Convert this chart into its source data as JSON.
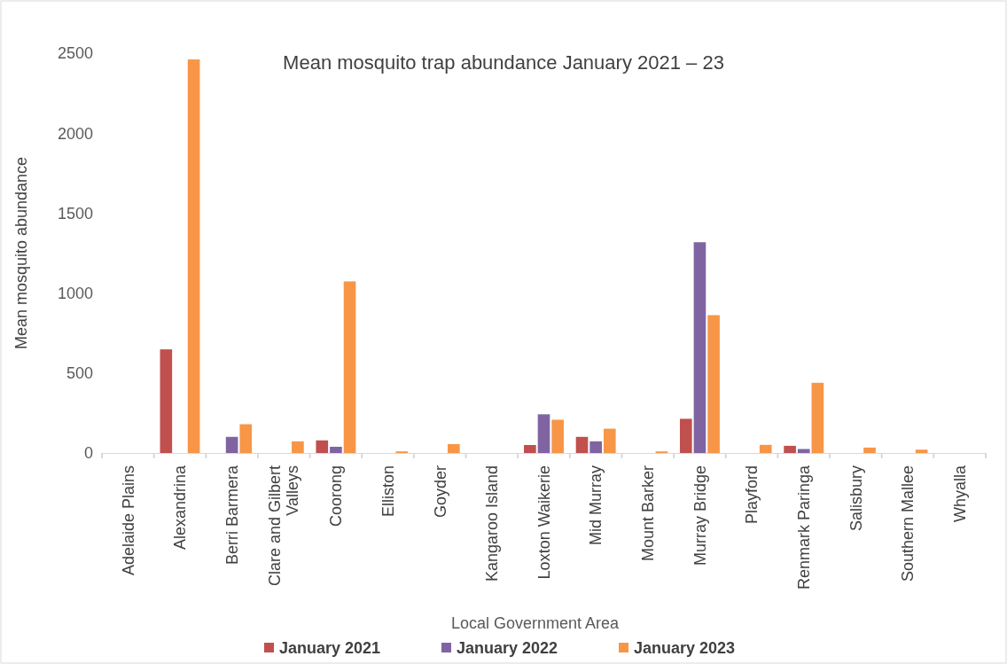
{
  "chart_data": {
    "type": "bar",
    "title": "Mean mosquito trap abundance January 2021 – 23",
    "xlabel": "Local Government Area",
    "ylabel": "Mean mosquito abundance",
    "categories": [
      "Adelaide Plains",
      "Alexandrina",
      "Berri Barmera",
      "Clare and Gilbert Valleys",
      "Coorong",
      "Elliston",
      "Goyder",
      "Kangaroo Island",
      "Loxton Waikerie",
      "Mid Murray",
      "Mount Barker",
      "Murray Bridge",
      "Playford",
      "Renmark Paringa",
      "Salisbury",
      "Southern Mallee",
      "Whyalla"
    ],
    "series": [
      {
        "name": "January 2021",
        "color": "#c0504d",
        "values": [
          null,
          648,
          null,
          null,
          79,
          null,
          null,
          null,
          50,
          101,
          null,
          214,
          null,
          45,
          null,
          null,
          null
        ]
      },
      {
        "name": "January 2022",
        "color": "#8064a2",
        "values": [
          null,
          null,
          101,
          null,
          39,
          null,
          null,
          null,
          242,
          73,
          null,
          1318,
          null,
          25,
          null,
          null,
          null
        ]
      },
      {
        "name": "January 2023",
        "color": "#f79646",
        "values": [
          null,
          2461,
          180,
          73,
          1073,
          10,
          56,
          null,
          208,
          152,
          10,
          862,
          51,
          439,
          34,
          21,
          null
        ]
      }
    ],
    "ylim": [
      0,
      2500
    ],
    "yticks": [
      0,
      500,
      1000,
      1500,
      2000,
      2500
    ],
    "grid": false,
    "legend": "bottom"
  }
}
